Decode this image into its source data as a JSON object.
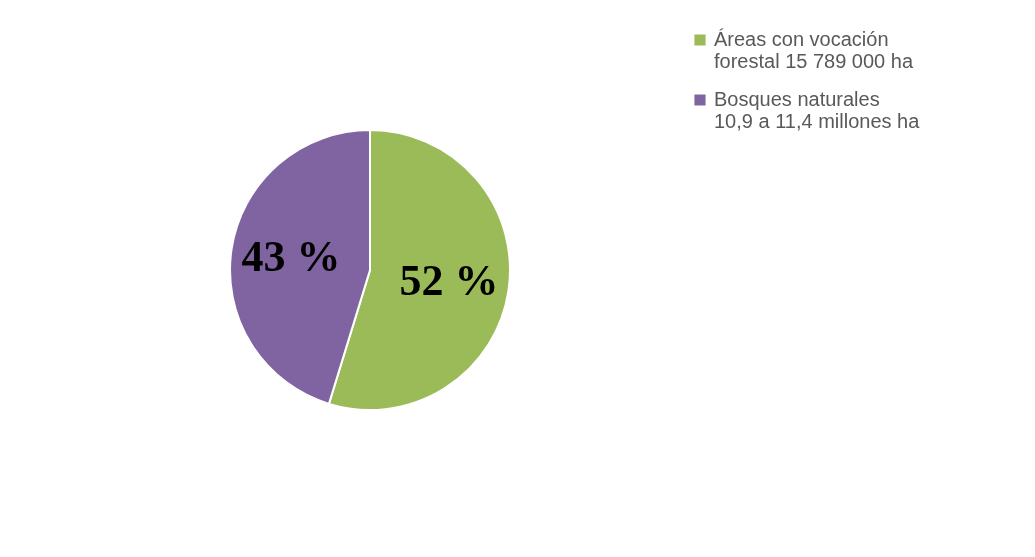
{
  "chart_data": {
    "type": "pie",
    "categories": [
      "Áreas con vocación\nforestal  15 789 000 ha",
      "Bosques naturales\n10,9 a 11,4 millones ha"
    ],
    "values": [
      52,
      43
    ],
    "colors": [
      "#9bbb59",
      "#8064a2"
    ],
    "value_labels": [
      "52 %",
      "43 %"
    ],
    "legend": "right"
  }
}
